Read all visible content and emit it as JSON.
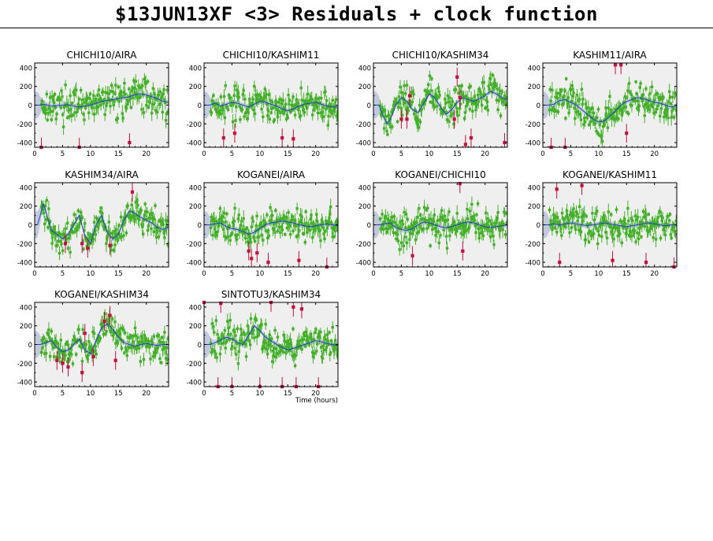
{
  "page": {
    "title": "$13JUN13XF <3> Residuals + clock function"
  },
  "style": {
    "panel_bg": "#efefef",
    "residual_color": "#44b02a",
    "flagged_color": "#c01040",
    "clock_color": "#2040c0",
    "band_color": "#c3c9dd"
  },
  "chart_data": [
    {
      "type": "scatter",
      "title": "CHICHI10/AIRA",
      "xlim": [
        0,
        24
      ],
      "ylim": [
        -450,
        450
      ],
      "xticks": [
        0,
        5,
        10,
        15,
        20
      ],
      "yticks": [
        -400,
        -200,
        0,
        200,
        400
      ],
      "series": [],
      "clock_x": [
        0,
        0.5,
        1,
        1.5,
        2,
        3,
        4,
        5,
        6,
        7,
        8,
        9,
        10,
        11,
        12,
        13,
        14,
        15,
        16,
        17,
        18,
        19,
        20,
        21,
        22,
        23,
        24
      ],
      "clock_y": [
        0,
        0,
        0,
        10,
        5,
        -10,
        -5,
        0,
        5,
        -10,
        -20,
        -10,
        0,
        20,
        40,
        50,
        60,
        70,
        80,
        90,
        110,
        120,
        110,
        90,
        70,
        40,
        30
      ],
      "flagged": [
        [
          1.2,
          -460
        ],
        [
          8,
          -460
        ],
        [
          17,
          -400
        ]
      ]
    },
    {
      "type": "scatter",
      "title": "CHICHI10/KASHIM11",
      "xlim": [
        0,
        24
      ],
      "ylim": [
        -450,
        450
      ],
      "xticks": [
        0,
        5,
        10,
        15,
        20
      ],
      "yticks": [
        -400,
        -200,
        0,
        200,
        400
      ],
      "clock_x": [
        0,
        1,
        2,
        3,
        4,
        5,
        6,
        7,
        8,
        9,
        10,
        11,
        12,
        13,
        14,
        15,
        16,
        17,
        18,
        19,
        20,
        21,
        22,
        23,
        24
      ],
      "clock_y": [
        0,
        0,
        20,
        -10,
        10,
        30,
        20,
        0,
        -20,
        10,
        40,
        30,
        10,
        -10,
        -40,
        -60,
        -40,
        -10,
        10,
        20,
        30,
        10,
        -10,
        -20,
        -20
      ],
      "flagged": [
        [
          3.5,
          -350
        ],
        [
          5.5,
          -300
        ],
        [
          14,
          -350
        ],
        [
          16,
          -360
        ]
      ]
    },
    {
      "type": "scatter",
      "title": "CHICHI10/KASHIM34",
      "xlim": [
        0,
        24
      ],
      "ylim": [
        -450,
        450
      ],
      "xticks": [
        0,
        5,
        10,
        15,
        20
      ],
      "yticks": [
        -400,
        -200,
        0,
        200,
        400
      ],
      "clock_x": [
        0,
        1,
        2,
        2.5,
        3,
        3.5,
        4,
        5,
        6,
        7,
        8,
        9,
        10,
        11,
        12,
        13,
        14,
        15,
        16,
        17,
        18,
        19,
        20,
        21,
        22,
        23,
        24
      ],
      "clock_y": [
        0,
        0,
        -150,
        -200,
        -150,
        -80,
        0,
        80,
        40,
        -50,
        -80,
        20,
        120,
        80,
        -20,
        -100,
        -50,
        30,
        80,
        60,
        40,
        70,
        100,
        150,
        120,
        80,
        60
      ],
      "flagged": [
        [
          5,
          -150
        ],
        [
          6,
          -150
        ],
        [
          6.5,
          100
        ],
        [
          15,
          300
        ],
        [
          14.5,
          -150
        ],
        [
          15.5,
          80
        ],
        [
          16.5,
          -420
        ],
        [
          17.5,
          -350
        ],
        [
          23.5,
          -400
        ]
      ]
    },
    {
      "type": "scatter",
      "title": "KASHIM11/AIRA",
      "xlim": [
        0,
        24
      ],
      "ylim": [
        -450,
        450
      ],
      "xticks": [
        0,
        5,
        10,
        15,
        20
      ],
      "yticks": [
        -400,
        -200,
        0,
        200,
        400
      ],
      "clock_x": [
        0,
        1,
        2,
        3,
        4,
        5,
        6,
        7,
        8,
        9,
        10,
        11,
        12,
        13,
        14,
        15,
        16,
        17,
        18,
        19,
        20,
        21,
        22,
        23,
        24
      ],
      "clock_y": [
        0,
        0,
        10,
        50,
        60,
        30,
        0,
        -50,
        -100,
        -150,
        -180,
        -170,
        -120,
        -60,
        0,
        40,
        60,
        80,
        70,
        50,
        30,
        20,
        0,
        -20,
        -10
      ],
      "flagged": [
        [
          1.5,
          -460
        ],
        [
          4,
          -460
        ],
        [
          13,
          430
        ],
        [
          14,
          430
        ],
        [
          15,
          -300
        ]
      ]
    },
    {
      "type": "scatter",
      "title": "KASHIM34/AIRA",
      "xlim": [
        0,
        24
      ],
      "ylim": [
        -450,
        450
      ],
      "xticks": [
        0,
        5,
        10,
        15,
        20
      ],
      "yticks": [
        -400,
        -200,
        0,
        200,
        400
      ],
      "clock_x": [
        0,
        0.5,
        1,
        1.5,
        2,
        2.5,
        3,
        4,
        5,
        6,
        7,
        8,
        9,
        10,
        11,
        12,
        13,
        14,
        15,
        16,
        17,
        18,
        19,
        20,
        21,
        22,
        23,
        24
      ],
      "clock_y": [
        0,
        0,
        100,
        220,
        150,
        40,
        -60,
        -100,
        -150,
        -100,
        0,
        100,
        -120,
        -200,
        0,
        100,
        -80,
        -150,
        -100,
        50,
        150,
        120,
        80,
        50,
        20,
        -30,
        -50,
        -20
      ],
      "flagged": [
        [
          5.5,
          -200
        ],
        [
          8.5,
          -200
        ],
        [
          9.5,
          -250
        ],
        [
          13.5,
          -220
        ],
        [
          17.5,
          350
        ]
      ]
    },
    {
      "type": "scatter",
      "title": "KOGANEI/AIRA",
      "xlim": [
        0,
        24
      ],
      "ylim": [
        -450,
        450
      ],
      "xticks": [
        0,
        5,
        10,
        15,
        20
      ],
      "yticks": [
        -400,
        -200,
        0,
        200,
        400
      ],
      "clock_x": [
        0,
        1,
        2,
        3,
        4,
        5,
        6,
        7,
        8,
        9,
        10,
        11,
        12,
        13,
        14,
        15,
        16,
        17,
        18,
        19,
        20,
        21,
        22,
        23,
        24
      ],
      "clock_y": [
        0,
        0,
        10,
        20,
        -20,
        -40,
        -50,
        -70,
        -100,
        -80,
        -40,
        0,
        20,
        30,
        40,
        30,
        20,
        0,
        -10,
        -20,
        -10,
        0,
        10,
        0,
        -10
      ],
      "flagged": [
        [
          8,
          -280
        ],
        [
          8.5,
          -360
        ],
        [
          9.5,
          -300
        ],
        [
          11.5,
          -400
        ],
        [
          17,
          -380
        ],
        [
          22,
          -460
        ]
      ]
    },
    {
      "type": "scatter",
      "title": "KOGANEI/CHICHI10",
      "xlim": [
        0,
        24
      ],
      "ylim": [
        -450,
        450
      ],
      "xticks": [
        0,
        5,
        10,
        15,
        20
      ],
      "yticks": [
        -400,
        -200,
        0,
        200,
        400
      ],
      "clock_x": [
        0,
        1,
        2,
        3,
        4,
        5,
        6,
        7,
        8,
        9,
        10,
        11,
        12,
        13,
        14,
        15,
        16,
        17,
        18,
        19,
        20,
        21,
        22,
        23,
        24
      ],
      "clock_y": [
        0,
        0,
        10,
        20,
        -30,
        -50,
        -60,
        -40,
        0,
        30,
        20,
        0,
        -20,
        -30,
        -20,
        0,
        20,
        30,
        20,
        0,
        -20,
        -30,
        -20,
        -10,
        0
      ],
      "flagged": [
        [
          7,
          -330
        ],
        [
          15.5,
          440
        ],
        [
          16,
          -280
        ]
      ]
    },
    {
      "type": "scatter",
      "title": "KOGANEI/KASHIM11",
      "xlim": [
        0,
        24
      ],
      "ylim": [
        -450,
        450
      ],
      "xticks": [
        0,
        5,
        10,
        15,
        20
      ],
      "yticks": [
        -400,
        -200,
        0,
        200,
        400
      ],
      "clock_x": [
        0,
        1,
        2,
        3,
        4,
        5,
        6,
        7,
        8,
        9,
        10,
        11,
        12,
        13,
        14,
        15,
        16,
        17,
        18,
        19,
        20,
        21,
        22,
        23,
        24
      ],
      "clock_y": [
        0,
        0,
        10,
        0,
        10,
        20,
        10,
        0,
        -10,
        0,
        10,
        20,
        10,
        0,
        -10,
        -20,
        -10,
        0,
        10,
        20,
        10,
        0,
        -10,
        0,
        0
      ],
      "flagged": [
        [
          2.5,
          380
        ],
        [
          3,
          -400
        ],
        [
          7,
          420
        ],
        [
          12.5,
          -380
        ],
        [
          18.5,
          -400
        ],
        [
          23.5,
          -460
        ]
      ]
    },
    {
      "type": "scatter",
      "title": "KOGANEI/KASHIM34",
      "xlim": [
        0,
        24
      ],
      "ylim": [
        -450,
        450
      ],
      "xticks": [
        0,
        5,
        10,
        15,
        20
      ],
      "yticks": [
        -400,
        -200,
        0,
        200,
        400
      ],
      "clock_x": [
        0,
        1,
        2,
        3,
        4,
        5,
        6,
        7,
        8,
        9,
        10,
        11,
        12,
        13,
        14,
        15,
        16,
        17,
        18,
        19,
        20,
        21,
        22,
        23,
        24
      ],
      "clock_y": [
        0,
        0,
        20,
        40,
        -30,
        -80,
        -60,
        0,
        60,
        -60,
        -100,
        40,
        180,
        220,
        160,
        80,
        20,
        0,
        -20,
        0,
        10,
        0,
        -10,
        0,
        0
      ],
      "flagged": [
        [
          4,
          -170
        ],
        [
          5,
          -200
        ],
        [
          6,
          -240
        ],
        [
          8.5,
          -300
        ],
        [
          10.5,
          -130
        ],
        [
          12.5,
          250
        ],
        [
          13.5,
          310
        ],
        [
          14.5,
          -170
        ],
        [
          9,
          120
        ]
      ]
    },
    {
      "type": "scatter",
      "title": "SINTOTU3/KASHIM34",
      "xlim": [
        0,
        24
      ],
      "ylim": [
        -450,
        450
      ],
      "xticks": [
        0,
        5,
        10,
        15,
        20
      ],
      "yticks": [
        -400,
        -200,
        0,
        200,
        400
      ],
      "xlabel": "Time (hours)",
      "clock_x": [
        0,
        1,
        2,
        3,
        4,
        5,
        6,
        7,
        8,
        9,
        10,
        11,
        12,
        13,
        14,
        15,
        16,
        17,
        18,
        19,
        20,
        21,
        22,
        23,
        24
      ],
      "clock_y": [
        0,
        0,
        20,
        50,
        80,
        60,
        20,
        0,
        100,
        200,
        150,
        80,
        40,
        0,
        -30,
        -60,
        -40,
        -20,
        0,
        20,
        40,
        30,
        10,
        0,
        -10
      ],
      "flagged": [
        [
          0,
          460
        ],
        [
          3,
          440
        ],
        [
          2.5,
          -460
        ],
        [
          5,
          -460
        ],
        [
          10,
          -460
        ],
        [
          12,
          460
        ],
        [
          14,
          -460
        ],
        [
          16,
          400
        ],
        [
          16.5,
          -460
        ],
        [
          17.5,
          380
        ],
        [
          20.5,
          -460
        ]
      ]
    }
  ]
}
